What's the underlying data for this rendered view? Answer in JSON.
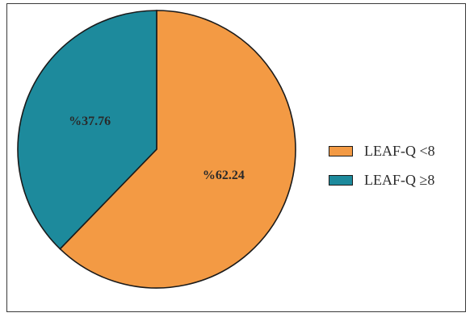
{
  "chart_data": {
    "type": "pie",
    "categories": [
      "LEAF-Q <8",
      "LEAF-Q ≥8"
    ],
    "values": [
      62.24,
      37.76
    ],
    "labels": [
      "%62.24",
      "%37.76"
    ],
    "colors": [
      "#f39a44",
      "#1d8a9c"
    ],
    "start_angle_deg": 0,
    "direction": "clockwise",
    "legend_position": "right"
  },
  "legend": {
    "items": [
      {
        "label": "LEAF-Q <8",
        "color": "#f39a44"
      },
      {
        "label": "LEAF-Q ≥8",
        "color": "#1d8a9c"
      }
    ]
  }
}
